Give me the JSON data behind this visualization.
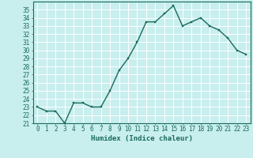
{
  "x": [
    0,
    1,
    2,
    3,
    4,
    5,
    6,
    7,
    8,
    9,
    10,
    11,
    12,
    13,
    14,
    15,
    16,
    17,
    18,
    19,
    20,
    21,
    22,
    23
  ],
  "y": [
    23.0,
    22.5,
    22.5,
    21.0,
    23.5,
    23.5,
    23.0,
    23.0,
    25.0,
    27.5,
    29.0,
    31.0,
    33.5,
    33.5,
    34.5,
    35.5,
    33.0,
    33.5,
    34.0,
    33.0,
    32.5,
    31.5,
    30.0,
    29.5
  ],
  "line_color": "#1a6b5a",
  "marker_color": "#1a6b5a",
  "bg_color": "#c8eeee",
  "grid_color": "#ffffff",
  "xlabel": "Humidex (Indice chaleur)",
  "ylim": [
    21,
    36
  ],
  "xlim": [
    -0.5,
    23.5
  ],
  "yticks": [
    21,
    22,
    23,
    24,
    25,
    26,
    27,
    28,
    29,
    30,
    31,
    32,
    33,
    34,
    35
  ],
  "xticks": [
    0,
    1,
    2,
    3,
    4,
    5,
    6,
    7,
    8,
    9,
    10,
    11,
    12,
    13,
    14,
    15,
    16,
    17,
    18,
    19,
    20,
    21,
    22,
    23
  ],
  "xlabel_fontsize": 6.5,
  "tick_fontsize": 5.5,
  "line_width": 1.0,
  "marker_size": 2.0
}
